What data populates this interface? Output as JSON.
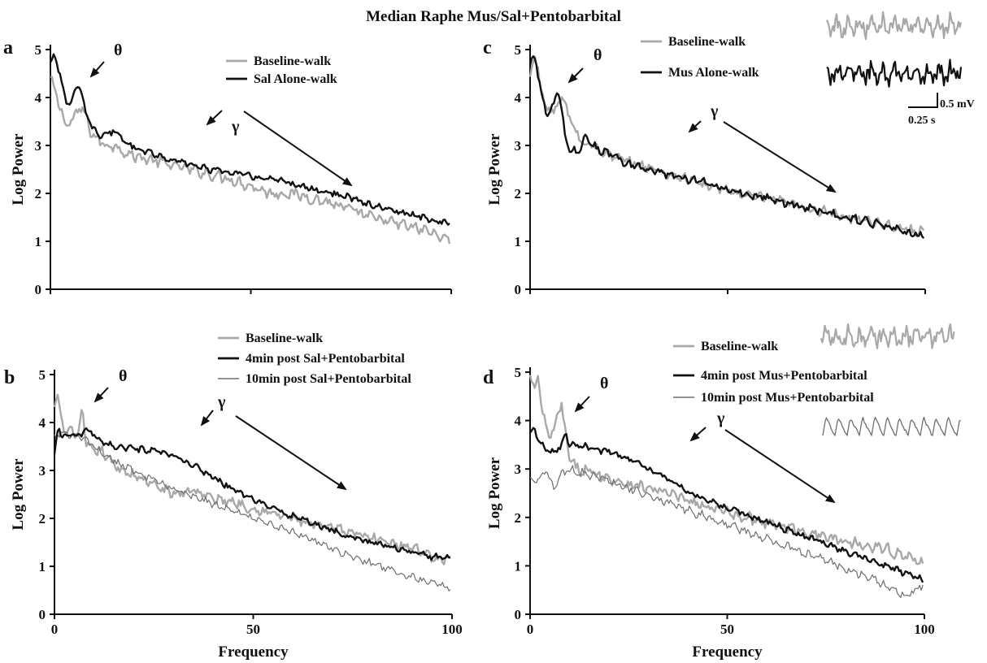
{
  "figure_title": "Median Raphe Mus/Sal+Pentobarbital",
  "colors": {
    "black": "#111111",
    "gray": "#a8a8a8",
    "mid_gray": "#6e6e6e"
  },
  "chart_data": [
    {
      "panel_letter": "a",
      "type": "line",
      "xlabel": "",
      "ylabel": "Log Power",
      "xlim": [
        0,
        100
      ],
      "ylim": [
        0,
        5
      ],
      "y_ticks": [
        0,
        1,
        2,
        3,
        4,
        5
      ],
      "x_ticks": [],
      "annotations": {
        "theta": "θ",
        "gamma": "γ"
      },
      "series": [
        {
          "name": "Baseline-walk",
          "color": "gray",
          "x": [
            0,
            2,
            4,
            6,
            8,
            10,
            12,
            14,
            16,
            20,
            25,
            30,
            35,
            40,
            45,
            50,
            55,
            60,
            65,
            70,
            75,
            80,
            85,
            90,
            95,
            100
          ],
          "y": [
            4.4,
            3.9,
            3.4,
            3.6,
            3.8,
            3.3,
            3.1,
            3.0,
            3.0,
            2.8,
            2.7,
            2.6,
            2.5,
            2.4,
            2.3,
            2.15,
            2.0,
            2.0,
            1.9,
            1.8,
            1.65,
            1.5,
            1.4,
            1.3,
            1.2,
            1.0
          ],
          "noise": 0.09
        },
        {
          "name": "Sal Alone-walk",
          "color": "black",
          "x": [
            0,
            1,
            2,
            3,
            4,
            5,
            6,
            7,
            8,
            9,
            10,
            12,
            14,
            16,
            20,
            25,
            30,
            35,
            40,
            45,
            50,
            55,
            60,
            65,
            70,
            75,
            80,
            85,
            90,
            95,
            100
          ],
          "y": [
            4.7,
            4.95,
            4.6,
            4.2,
            3.9,
            3.9,
            4.1,
            4.25,
            4.0,
            3.6,
            3.45,
            3.2,
            3.25,
            3.3,
            3.0,
            2.85,
            2.7,
            2.6,
            2.5,
            2.45,
            2.35,
            2.3,
            2.2,
            2.1,
            2.0,
            1.9,
            1.75,
            1.65,
            1.55,
            1.45,
            1.35
          ],
          "noise": 0.05
        }
      ]
    },
    {
      "panel_letter": "b",
      "type": "line",
      "xlabel": "Frequency",
      "ylabel": "Log Power",
      "xlim": [
        0,
        100
      ],
      "ylim": [
        0,
        5
      ],
      "y_ticks": [
        0,
        1,
        2,
        3,
        4,
        5
      ],
      "x_ticks": [
        0,
        50,
        100
      ],
      "annotations": {
        "theta": "θ",
        "gamma": "γ"
      },
      "series": [
        {
          "name": "Baseline-walk",
          "color": "gray",
          "x": [
            0,
            1,
            2,
            3,
            4,
            6,
            7,
            8,
            10,
            12,
            15,
            20,
            25,
            30,
            35,
            40,
            45,
            50,
            55,
            60,
            65,
            70,
            75,
            80,
            85,
            90,
            95,
            100
          ],
          "y": [
            4.3,
            4.5,
            4.0,
            3.7,
            3.9,
            3.7,
            4.3,
            3.5,
            3.4,
            3.4,
            3.1,
            2.9,
            2.7,
            2.5,
            2.6,
            2.4,
            2.35,
            2.2,
            2.1,
            2.0,
            1.85,
            1.8,
            1.7,
            1.6,
            1.5,
            1.4,
            1.2,
            1.1
          ],
          "noise": 0.08
        },
        {
          "name": "4min post Sal+Pentobarbital",
          "color": "black",
          "x": [
            0,
            1,
            2,
            4,
            6,
            8,
            10,
            12,
            15,
            20,
            25,
            30,
            35,
            40,
            45,
            50,
            55,
            60,
            65,
            70,
            75,
            80,
            85,
            90,
            95,
            100
          ],
          "y": [
            3.3,
            3.9,
            3.7,
            3.75,
            3.7,
            3.85,
            3.75,
            3.6,
            3.5,
            3.45,
            3.4,
            3.3,
            3.1,
            2.85,
            2.6,
            2.4,
            2.2,
            2.05,
            1.9,
            1.75,
            1.6,
            1.5,
            1.4,
            1.3,
            1.2,
            1.2
          ],
          "noise": 0.05
        },
        {
          "name": "10min post Sal+Pentobarbital",
          "color": "mid_gray",
          "x": [
            0,
            2,
            5,
            8,
            10,
            15,
            20,
            25,
            30,
            35,
            40,
            45,
            50,
            55,
            60,
            65,
            70,
            75,
            80,
            85,
            90,
            95,
            100
          ],
          "y": [
            3.7,
            3.8,
            3.7,
            3.65,
            3.5,
            3.2,
            3.0,
            2.8,
            2.6,
            2.45,
            2.3,
            2.15,
            2.0,
            1.85,
            1.7,
            1.55,
            1.35,
            1.2,
            1.05,
            0.9,
            0.8,
            0.65,
            0.55
          ],
          "noise": 0.06
        }
      ]
    },
    {
      "panel_letter": "c",
      "type": "line",
      "xlabel": "",
      "ylabel": "Log Power",
      "xlim": [
        0,
        100
      ],
      "ylim": [
        0,
        5
      ],
      "y_ticks": [
        0,
        1,
        2,
        3,
        4,
        5
      ],
      "x_ticks": [],
      "annotations": {
        "theta": "θ",
        "gamma": "γ"
      },
      "scale_bar": {
        "voltage": "0.5 mV",
        "time": "0.25 s"
      },
      "series": [
        {
          "name": "Baseline-walk",
          "color": "gray",
          "x": [
            0,
            1,
            2,
            3,
            4,
            6,
            8,
            10,
            12,
            14,
            16,
            20,
            25,
            30,
            35,
            40,
            45,
            50,
            55,
            60,
            65,
            70,
            75,
            80,
            85,
            90,
            95,
            100
          ],
          "y": [
            4.4,
            4.8,
            4.7,
            4.0,
            3.8,
            3.7,
            4.0,
            3.6,
            3.2,
            3.0,
            3.0,
            2.8,
            2.65,
            2.55,
            2.4,
            2.3,
            2.15,
            2.05,
            1.95,
            1.9,
            1.8,
            1.7,
            1.6,
            1.5,
            1.45,
            1.35,
            1.25,
            1.2
          ],
          "noise": 0.08
        },
        {
          "name": "Mus Alone-walk",
          "color": "black",
          "x": [
            0,
            1,
            2,
            3,
            4,
            5,
            6,
            7,
            8,
            9,
            10,
            12,
            14,
            16,
            20,
            25,
            30,
            35,
            40,
            45,
            50,
            55,
            60,
            65,
            70,
            75,
            80,
            85,
            90,
            95,
            100
          ],
          "y": [
            4.6,
            4.95,
            4.5,
            4.0,
            3.7,
            3.65,
            3.9,
            4.15,
            3.7,
            3.1,
            2.9,
            2.85,
            3.2,
            3.0,
            2.8,
            2.6,
            2.5,
            2.4,
            2.3,
            2.2,
            2.1,
            2.0,
            1.9,
            1.8,
            1.7,
            1.6,
            1.5,
            1.4,
            1.3,
            1.2,
            1.1
          ],
          "noise": 0.07
        }
      ]
    },
    {
      "panel_letter": "d",
      "type": "line",
      "xlabel": "Frequency",
      "ylabel": "Log Power",
      "xlim": [
        0,
        100
      ],
      "ylim": [
        0,
        5
      ],
      "y_ticks": [
        0,
        1,
        2,
        3,
        4,
        5
      ],
      "x_ticks": [
        0,
        50,
        100
      ],
      "annotations": {
        "theta": "θ",
        "gamma": "γ"
      },
      "series": [
        {
          "name": "Baseline-walk",
          "color": "gray",
          "x": [
            0,
            1,
            2,
            3,
            4,
            5,
            6,
            7,
            8,
            9,
            10,
            12,
            15,
            20,
            25,
            30,
            35,
            40,
            45,
            50,
            55,
            60,
            65,
            70,
            75,
            80,
            85,
            90,
            95,
            100
          ],
          "y": [
            4.9,
            4.6,
            4.9,
            4.2,
            3.9,
            3.6,
            3.8,
            4.1,
            4.35,
            3.7,
            3.2,
            3.0,
            2.95,
            2.8,
            2.7,
            2.6,
            2.5,
            2.35,
            2.2,
            2.1,
            2.0,
            1.9,
            1.8,
            1.7,
            1.6,
            1.5,
            1.45,
            1.35,
            1.2,
            1.05
          ],
          "noise": 0.09
        },
        {
          "name": "4min post Mus+Pentobarbital",
          "color": "black",
          "x": [
            0,
            1,
            2,
            4,
            6,
            8,
            9,
            10,
            12,
            15,
            20,
            25,
            30,
            35,
            40,
            45,
            50,
            55,
            60,
            65,
            70,
            75,
            80,
            85,
            90,
            95,
            100
          ],
          "y": [
            3.7,
            3.85,
            3.6,
            3.4,
            3.35,
            3.5,
            3.75,
            3.5,
            3.5,
            3.45,
            3.35,
            3.2,
            3.0,
            2.8,
            2.55,
            2.35,
            2.2,
            2.05,
            1.9,
            1.75,
            1.6,
            1.45,
            1.3,
            1.15,
            1.0,
            0.85,
            0.7
          ],
          "noise": 0.05
        },
        {
          "name": "10min post Mus+Pentobarbital",
          "color": "mid_gray",
          "x": [
            0,
            2,
            4,
            6,
            8,
            10,
            12,
            15,
            20,
            25,
            30,
            35,
            40,
            45,
            50,
            55,
            60,
            65,
            70,
            75,
            80,
            85,
            90,
            95,
            100
          ],
          "y": [
            2.75,
            2.8,
            3.0,
            2.6,
            2.9,
            3.0,
            2.95,
            2.85,
            2.75,
            2.6,
            2.45,
            2.3,
            2.15,
            2.0,
            1.85,
            1.7,
            1.55,
            1.4,
            1.25,
            1.1,
            0.95,
            0.8,
            0.6,
            0.4,
            0.6
          ],
          "noise": 0.07
        }
      ]
    }
  ],
  "eeg_traces": [
    {
      "id": "c-baseline",
      "color": "gray",
      "style": "irregular"
    },
    {
      "id": "c-mus-alone",
      "color": "black",
      "style": "irregular"
    },
    {
      "id": "d-baseline",
      "color": "gray",
      "style": "irregular"
    },
    {
      "id": "d-10min",
      "color": "mid_gray",
      "style": "spiky"
    }
  ]
}
